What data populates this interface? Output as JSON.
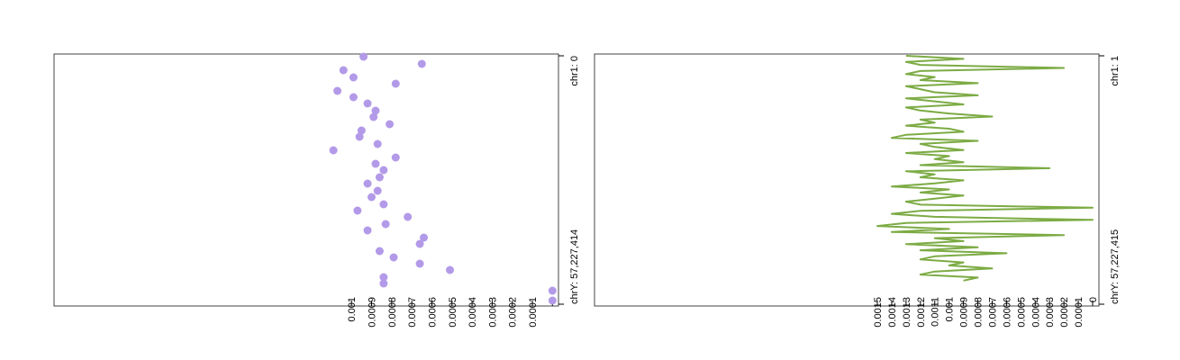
{
  "chart_data": [
    {
      "type": "scatter",
      "color": "#b39ae8",
      "xlim": [
        0,
        57227414
      ],
      "xticks": [
        {
          "value": 0,
          "label": "chr1: 0"
        },
        {
          "value": 57227414,
          "label": "chrY: 57,227,414"
        }
      ],
      "ylim": [
        -3e-05,
        0.00248
      ],
      "yticks": [
        0.001,
        0.0009,
        0.0008,
        0.0007,
        0.0006,
        0.0005,
        0.0004,
        0.0003,
        0.0002,
        0.0001,
        0
      ],
      "x": [
        207346,
        1866114,
        3317536,
        4976304,
        6427726,
        8086494,
        9537916,
        10989338,
        12648106,
        14099528,
        15758296,
        17209718,
        18661140,
        20319908,
        21771330,
        23430098,
        24881520,
        26332942,
        27991710,
        29443132,
        31101900,
        32553322,
        34212090,
        35663512,
        37114934,
        38773702,
        40225124,
        41883892,
        43335314,
        44994082,
        46445504,
        47896926,
        49348348,
        51007116,
        52458538,
        54117306,
        56398112
      ],
      "values": [
        0.00094,
        0.00065,
        0.00104,
        0.00099,
        0.00078,
        0.00107,
        0.00099,
        0.00092,
        0.00088,
        0.00089,
        0.00081,
        0.00095,
        0.00096,
        0.00087,
        0.00109,
        0.00078,
        0.00088,
        0.00084,
        0.00086,
        0.00092,
        0.00087,
        0.0009,
        0.00084,
        0.00097,
        0.00072,
        0.00083,
        0.00092,
        0.00064,
        0.00066,
        0.00086,
        0.00079,
        0.00066,
        0.00051,
        0.00084,
        0.00084,
        0,
        0
      ]
    },
    {
      "type": "line",
      "color": "#7cab44",
      "xlim": [
        1,
        57227415
      ],
      "xticks": [
        {
          "value": 1,
          "label": "chr1: 1"
        },
        {
          "value": 57227415,
          "label": "chrY: 57,227,415"
        }
      ],
      "ylim": [
        -4.4e-05,
        0.003471
      ],
      "yticks": [
        0.0015,
        0.0014,
        0.0013,
        0.0012,
        0.0011,
        0.001,
        0.0009,
        0.0008,
        0.0007,
        0.0006,
        0.0005,
        0.0004,
        0.0003,
        0.0002,
        0.0001,
        0
      ],
      "x": [
        1,
        700001,
        1400001,
        2100001,
        2800001,
        3500001,
        4200001,
        4900001,
        5600001,
        6300001,
        7000001,
        7700001,
        8400001,
        9100001,
        9800001,
        10500001,
        11200001,
        11900001,
        12600001,
        13300001,
        14000001,
        14700001,
        15400001,
        16100001,
        16800001,
        17500001,
        18200001,
        18900001,
        19600001,
        20300001,
        21000001,
        21700001,
        22400001,
        23100001,
        23800001,
        24500001,
        25200001,
        25900001,
        26600001,
        27300001,
        28000001,
        28700001,
        29400001,
        30100001,
        30800001,
        31500001,
        32200001,
        32900001,
        33600001,
        34300001,
        35000001,
        35700001,
        36400001,
        37100001,
        37800001,
        38500001,
        39200001,
        39900001,
        40600001,
        41300001,
        42000001,
        42700001,
        43400001,
        44100001,
        44800001,
        45500001,
        46200001,
        46900001,
        47600001,
        48300001,
        49000001,
        49700001,
        50400001,
        51100001,
        51800001
      ],
      "values": [
        0.0013,
        0.0009,
        0.0013,
        0.0012,
        0.0002,
        0.0012,
        0.0013,
        0.0011,
        0.0012,
        0.0008,
        0.0013,
        0.0012,
        0.0011,
        0.0008,
        0.0013,
        0.0011,
        0.0009,
        0.0013,
        0.0012,
        0.001,
        0.0007,
        0.0012,
        0.0011,
        0.0013,
        0.001,
        0.0009,
        0.0013,
        0.0014,
        0.0008,
        0.0012,
        0.0011,
        0.0009,
        0.0013,
        0.001,
        0.0011,
        0.0009,
        0.0012,
        0.0003,
        0.0013,
        0.0011,
        0.0012,
        0.0009,
        0.0011,
        0.0014,
        0.001,
        0.0012,
        0.0009,
        0.0011,
        0.0013,
        0.0012,
        0,
        0.0012,
        0.0014,
        0.0011,
        0,
        0.0013,
        0.0015,
        0.001,
        0.0014,
        0.0002,
        0.0011,
        0.0009,
        0.0013,
        0.0008,
        0.0012,
        0.0006,
        0.0011,
        0.0012,
        0.0009,
        0.001,
        0.0007,
        0.0011,
        0.0012,
        0.0008,
        0.0009
      ]
    }
  ]
}
